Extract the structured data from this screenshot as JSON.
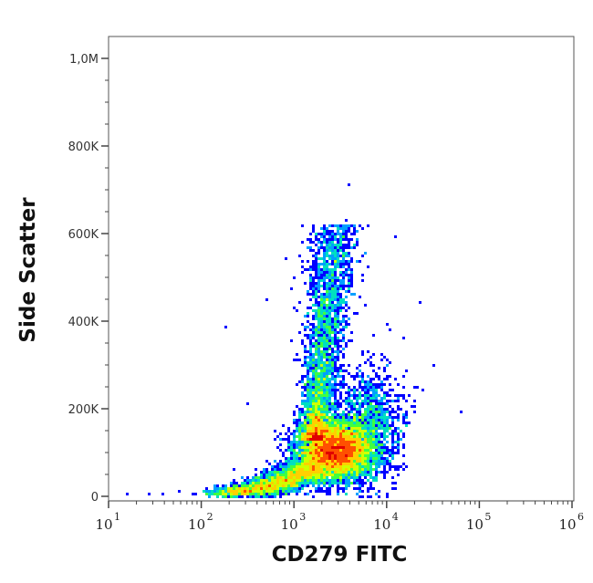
{
  "chart_data": {
    "type": "scatter",
    "style": "density-pseudocolor",
    "xlabel": "CD279 FITC",
    "ylabel": "Side Scatter",
    "x_scale": "log10",
    "xlim_log10": [
      1,
      6
    ],
    "ylim": [
      0,
      1000000
    ],
    "x_ticks": [
      {
        "base": "10",
        "exp": "1",
        "value": 1
      },
      {
        "base": "10",
        "exp": "2",
        "value": 2
      },
      {
        "base": "10",
        "exp": "3",
        "value": 3
      },
      {
        "base": "10",
        "exp": "4",
        "value": 4
      },
      {
        "base": "10",
        "exp": "5",
        "value": 5
      },
      {
        "base": "10",
        "exp": "6",
        "value": 6
      }
    ],
    "y_ticks": [
      {
        "label": "0",
        "value": 0
      },
      {
        "label": "200K",
        "value": 200000
      },
      {
        "label": "400K",
        "value": 400000
      },
      {
        "label": "600K",
        "value": 600000
      },
      {
        "label": "800K",
        "value": 800000
      },
      {
        "label": "1,0M",
        "value": 1000000
      }
    ],
    "colormap": [
      "#0000ff",
      "#00a0ff",
      "#00e0c0",
      "#40ff40",
      "#d0ff00",
      "#ffd000",
      "#ff5000",
      "#e00000"
    ],
    "seed": 279,
    "populations": [
      {
        "name": "main-cluster",
        "kind": "gauss",
        "n": 6000,
        "log10x_mean": 3.45,
        "log10x_sd": 0.2,
        "y_mean": 105000,
        "y_sd": 33000
      },
      {
        "name": "ssc-high-arm",
        "kind": "arm",
        "n": 3200,
        "log10x_start": 3.22,
        "log10x_end": 3.45,
        "log10x_sd": 0.1,
        "y_start": 130000,
        "y_end": 620000
      },
      {
        "name": "low-tail",
        "kind": "tail",
        "n": 2600,
        "log10x_start": 2.2,
        "log10x_end": 3.3,
        "log10x_sd": 0.12,
        "y_start": 8000,
        "y_end": 80000,
        "y_sd": 14000
      },
      {
        "name": "right-spread",
        "kind": "gauss",
        "n": 1200,
        "log10x_mean": 3.8,
        "log10x_sd": 0.18,
        "y_mean": 160000,
        "y_sd": 65000
      }
    ],
    "outliers": [
      [
        1.2,
        3000
      ],
      [
        1.45,
        4000
      ],
      [
        1.9,
        5000
      ],
      [
        2.05,
        20000
      ],
      [
        1.75,
        12000
      ],
      [
        2.25,
        385000
      ],
      [
        2.5,
        210000
      ],
      [
        2.7,
        450000
      ],
      [
        2.1,
        8000
      ],
      [
        4.35,
        440000
      ],
      [
        4.8,
        190000
      ],
      [
        3.6,
        710000
      ],
      [
        3.55,
        630000
      ],
      [
        4.1,
        590000
      ],
      [
        4.3,
        250000
      ],
      [
        4.5,
        300000
      ],
      [
        2.35,
        60000
      ],
      [
        1.6,
        8000
      ]
    ]
  }
}
